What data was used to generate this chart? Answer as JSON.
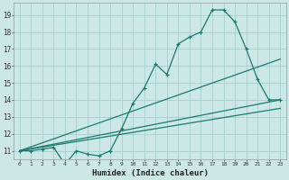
{
  "xlabel": "Humidex (Indice chaleur)",
  "bg_color": "#cce8e6",
  "grid_color": "#a8d0ce",
  "line_color": "#1a7a6e",
  "xlim": [
    -0.5,
    23.5
  ],
  "ylim": [
    10.5,
    19.7
  ],
  "xticks": [
    0,
    1,
    2,
    3,
    4,
    5,
    6,
    7,
    8,
    9,
    10,
    11,
    12,
    13,
    14,
    15,
    16,
    17,
    18,
    19,
    20,
    21,
    22,
    23
  ],
  "yticks": [
    11,
    12,
    13,
    14,
    15,
    16,
    17,
    18,
    19
  ],
  "series1_x": [
    0,
    1,
    2,
    3,
    4,
    5,
    6,
    7,
    8,
    9,
    10,
    11,
    12,
    13,
    14,
    15,
    16,
    17,
    18,
    19,
    20,
    21,
    22,
    23
  ],
  "series1_y": [
    11,
    11,
    11.1,
    11.2,
    10.2,
    11,
    10.8,
    10.7,
    11.0,
    12.3,
    13.8,
    14.7,
    16.1,
    15.5,
    17.3,
    17.7,
    18.0,
    19.3,
    19.3,
    18.6,
    17.0,
    15.2,
    14.0,
    14.0
  ],
  "line1_x": [
    0,
    23
  ],
  "line1_y": [
    11,
    14.0
  ],
  "line2_x": [
    0,
    23
  ],
  "line2_y": [
    11,
    16.4
  ],
  "line3_x": [
    0,
    23
  ],
  "line3_y": [
    11,
    13.5
  ]
}
